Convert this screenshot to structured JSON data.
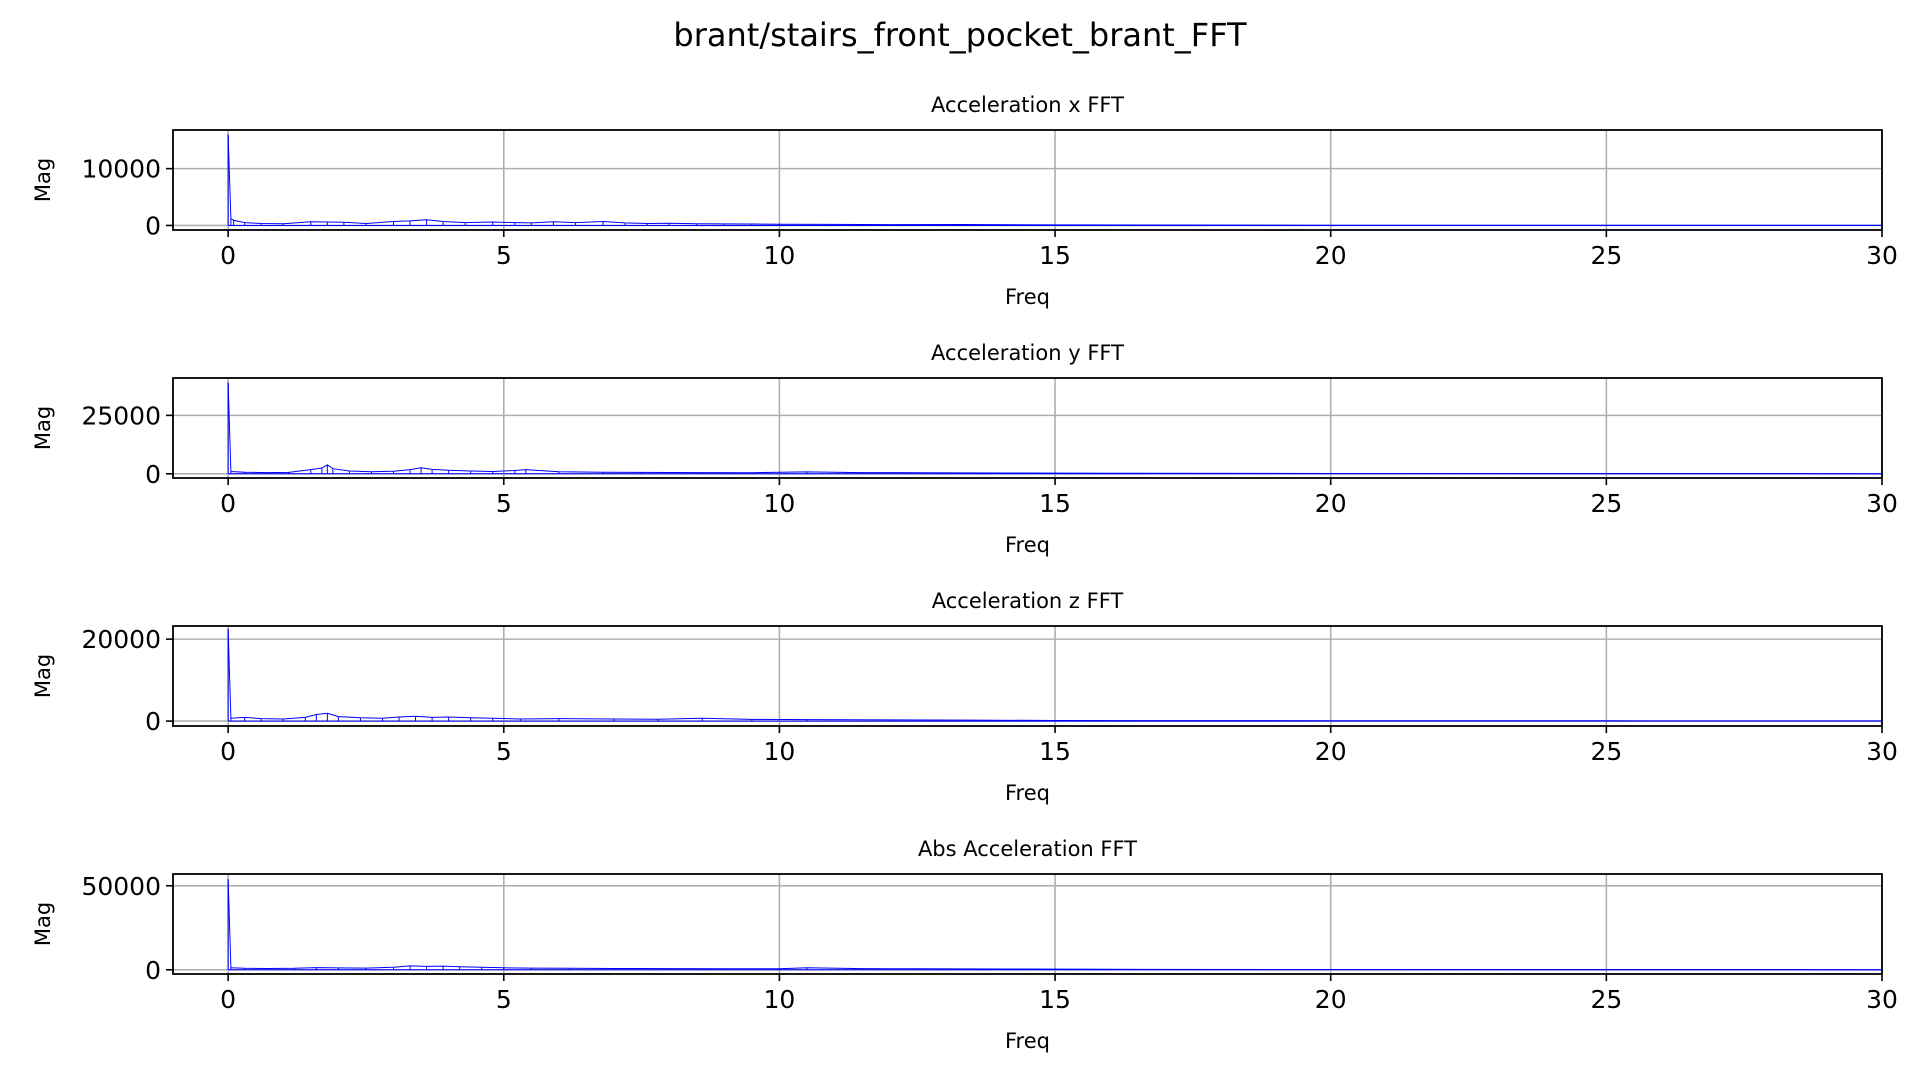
{
  "figure": {
    "title": "brant/stairs_front_pocket_brant_FFT"
  },
  "chart_data": [
    {
      "type": "line",
      "title": "Acceleration x FFT",
      "xlabel": "Freq",
      "ylabel": "Mag",
      "xlim": [
        -1,
        30
      ],
      "ylim": [
        -800,
        16800
      ],
      "xticks": [
        0,
        5,
        10,
        15,
        20,
        25,
        30
      ],
      "yticks": [
        0,
        10000
      ],
      "grid": true,
      "color": "#0000ff",
      "peak": {
        "x": 0,
        "y": 16000
      },
      "series": [
        {
          "x": [
            0.05,
            0.1,
            0.3,
            0.6,
            1.0,
            1.5,
            1.8,
            2.1,
            2.5,
            3.0,
            3.3,
            3.6,
            3.9,
            4.3,
            4.8,
            5.2,
            5.5,
            5.9,
            6.3,
            6.8,
            7.2,
            7.6,
            8.0,
            8.5,
            9.0,
            9.5,
            10.0,
            11.0,
            12.0,
            13.3,
            15.0,
            20.0,
            25.0,
            30.0
          ],
          "y": [
            1200,
            900,
            500,
            350,
            300,
            650,
            600,
            550,
            350,
            700,
            800,
            1000,
            700,
            500,
            600,
            500,
            450,
            650,
            500,
            700,
            450,
            350,
            400,
            300,
            280,
            250,
            200,
            180,
            150,
            170,
            90,
            50,
            40,
            30
          ]
        }
      ]
    },
    {
      "type": "line",
      "title": "Acceleration y FFT",
      "xlabel": "Freq",
      "ylabel": "Mag",
      "xlim": [
        -1,
        30
      ],
      "ylim": [
        -1800,
        41000
      ],
      "xticks": [
        0,
        5,
        10,
        15,
        20,
        25,
        30
      ],
      "yticks": [
        0,
        25000
      ],
      "grid": true,
      "color": "#0000ff",
      "peak": {
        "x": 0,
        "y": 39000
      },
      "series": [
        {
          "x": [
            0.05,
            0.3,
            0.7,
            1.1,
            1.5,
            1.7,
            1.8,
            1.9,
            2.2,
            2.6,
            3.0,
            3.3,
            3.5,
            3.7,
            4.0,
            4.4,
            4.8,
            5.2,
            5.4,
            6.0,
            6.8,
            7.5,
            8.5,
            9.5,
            10.5,
            11.5,
            12.5,
            14.0,
            16.0,
            20.0,
            25.0,
            30.0
          ],
          "y": [
            1000,
            700,
            500,
            600,
            1800,
            2500,
            3800,
            2200,
            1200,
            900,
            1100,
            1800,
            2600,
            1900,
            1500,
            1200,
            1000,
            1400,
            1800,
            900,
            700,
            600,
            500,
            450,
            800,
            500,
            450,
            350,
            250,
            120,
            80,
            60
          ]
        }
      ]
    },
    {
      "type": "line",
      "title": "Acceleration z FFT",
      "xlabel": "Freq",
      "ylabel": "Mag",
      "xlim": [
        -1,
        30
      ],
      "ylim": [
        -1200,
        23200
      ],
      "xticks": [
        0,
        5,
        10,
        15,
        20,
        25,
        30
      ],
      "yticks": [
        0,
        20000
      ],
      "grid": true,
      "color": "#0000ff",
      "peak": {
        "x": 0,
        "y": 22500
      },
      "series": [
        {
          "x": [
            0.05,
            0.3,
            0.6,
            1.0,
            1.4,
            1.6,
            1.8,
            2.0,
            2.4,
            2.8,
            3.1,
            3.4,
            3.7,
            4.0,
            4.4,
            4.8,
            5.3,
            6.0,
            7.0,
            7.8,
            8.6,
            9.5,
            10.5,
            12.0,
            13.5,
            15.0,
            20.0,
            25.0,
            30.0
          ],
          "y": [
            700,
            900,
            600,
            500,
            900,
            1600,
            1900,
            1100,
            800,
            700,
            1000,
            1200,
            900,
            1000,
            800,
            700,
            500,
            600,
            500,
            450,
            700,
            400,
            350,
            300,
            250,
            150,
            90,
            60,
            40
          ]
        }
      ]
    },
    {
      "type": "line",
      "title": "Abs Acceleration FFT",
      "xlabel": "Freq",
      "ylabel": "Mag",
      "xlim": [
        -1,
        30
      ],
      "ylim": [
        -2500,
        57000
      ],
      "xticks": [
        0,
        5,
        10,
        15,
        20,
        25,
        30
      ],
      "yticks": [
        0,
        50000
      ],
      "grid": true,
      "color": "#0000ff",
      "peak": {
        "x": 0,
        "y": 54000
      },
      "series": [
        {
          "x": [
            0.05,
            0.3,
            0.7,
            1.2,
            1.6,
            2.0,
            2.5,
            3.0,
            3.3,
            3.6,
            3.9,
            4.2,
            4.6,
            5.0,
            5.5,
            6.2,
            7.0,
            8.0,
            9.0,
            10.0,
            10.5,
            11.5,
            12.5,
            14.0,
            16.0,
            20.0,
            25.0,
            30.0
          ],
          "y": [
            1200,
            900,
            800,
            900,
            1300,
            1100,
            1000,
            1500,
            2300,
            2000,
            2200,
            1800,
            1500,
            1200,
            1000,
            900,
            800,
            700,
            650,
            600,
            1200,
            700,
            600,
            450,
            300,
            150,
            100,
            80
          ]
        }
      ]
    }
  ]
}
